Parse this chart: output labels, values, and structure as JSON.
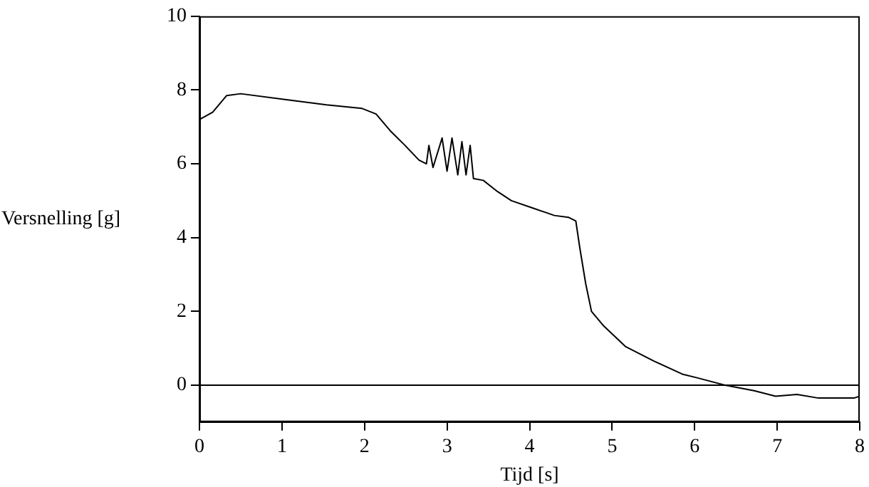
{
  "chart_data": {
    "type": "line",
    "xlabel": "Tijd [s]",
    "ylabel": "Versnelling [g]",
    "series": [
      {
        "color": "#000000",
        "x": [
          0,
          0.16,
          0.33,
          0.5,
          1.02,
          1.54,
          1.97,
          2.14,
          2.31,
          2.49,
          2.66,
          2.75,
          2.78,
          2.83,
          2.94,
          3.0,
          3.06,
          3.13,
          3.18,
          3.23,
          3.28,
          3.32,
          3.44,
          3.61,
          3.78,
          4.04,
          4.3,
          4.47,
          4.56,
          4.61,
          4.68,
          4.75,
          4.9,
          5.16,
          5.51,
          5.85,
          6.03,
          6.37,
          6.72,
          6.98,
          7.24,
          7.5,
          7.93,
          8
        ],
        "values": [
          7.2,
          7.4,
          7.85,
          7.9,
          7.75,
          7.6,
          7.5,
          7.35,
          6.9,
          6.5,
          6.1,
          6.0,
          6.5,
          5.9,
          6.7,
          5.8,
          6.7,
          5.7,
          6.6,
          5.7,
          6.5,
          5.6,
          5.55,
          5.25,
          5.0,
          4.8,
          4.6,
          4.55,
          4.45,
          3.7,
          2.75,
          2.0,
          1.6,
          1.05,
          0.65,
          0.3,
          0.2,
          0.0,
          -0.15,
          -0.3,
          -0.25,
          -0.35,
          -0.35,
          -0.3
        ]
      }
    ],
    "xlim": [
      0,
      8
    ],
    "xticks": [
      0,
      1,
      2,
      3,
      4,
      5,
      6,
      7,
      8
    ],
    "ylim": [
      -1,
      10
    ],
    "yticks": [
      0,
      2,
      4,
      6,
      8,
      10
    ],
    "ref_lines": [
      {
        "axis": "y",
        "value": 0,
        "color": "#000000"
      }
    ],
    "grid": false,
    "legend": false,
    "marker": "none",
    "line_style": "solid"
  }
}
